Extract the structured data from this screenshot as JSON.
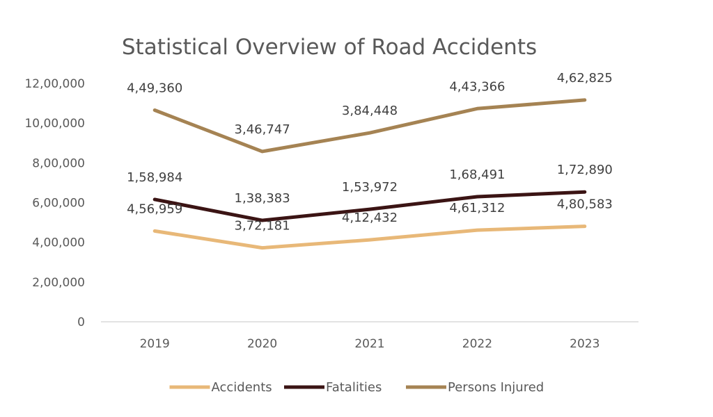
{
  "chart_data": {
    "type": "line",
    "title": "Statistical Overview of Road Accidents",
    "categories": [
      "2019",
      "2020",
      "2021",
      "2022",
      "2023"
    ],
    "y_ticks": [
      "0",
      "2,00,000",
      "4,00,000",
      "6,00,000",
      "8,00,000",
      "10,00,000",
      "12,00,000"
    ],
    "ylim": [
      0,
      1200000
    ],
    "grid": false,
    "legend_position": "bottom",
    "series": [
      {
        "name": "Accidents",
        "color": "#E8B878",
        "stack_values": [
          456959,
          372181,
          412432,
          461312,
          480583
        ],
        "labels": [
          "4,56,959",
          "3,72,181",
          "4,12,432",
          "4,61,312",
          "4,80,583"
        ]
      },
      {
        "name": "Fatalities",
        "color": "#3B1414",
        "stack_values": [
          615943,
          510564,
          566404,
          629803,
          653473
        ],
        "labels": [
          "1,58,984",
          "1,38,383",
          "1,53,972",
          "1,68,491",
          "1,72,890"
        ]
      },
      {
        "name": "Persons Injured",
        "color": "#A58353",
        "stack_values": [
          1065303,
          857311,
          950852,
          1073169,
          1116298
        ],
        "labels": [
          "4,49,360",
          "3,46,747",
          "3,84,448",
          "4,43,366",
          "4,62,825"
        ]
      }
    ]
  }
}
